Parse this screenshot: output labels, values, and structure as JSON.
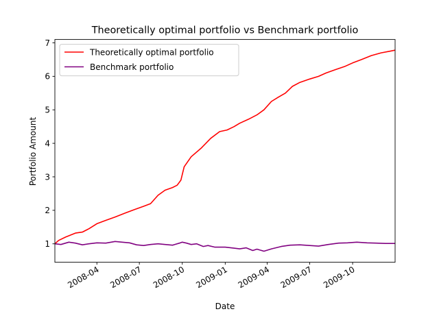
{
  "chart_data": {
    "type": "line",
    "title": "Theoretically optimal portfolio vs Benchmark portfolio",
    "xlabel": "Date",
    "ylabel": "Portfolio Amount",
    "xlim": [
      "2008-01-02",
      "2009-12-31"
    ],
    "ylim": [
      0.45,
      7.1
    ],
    "grid": false,
    "legend_position": "top-left",
    "x_ticks": [
      "2008-04-01",
      "2008-07-01",
      "2008-10-01",
      "2009-01-01",
      "2009-04-01",
      "2009-07-01",
      "2009-10-01"
    ],
    "x_tick_labels": [
      "2008-04",
      "2008-07",
      "2008-10",
      "2009-01",
      "2009-04",
      "2009-07",
      "2009-10"
    ],
    "y_ticks": [
      1,
      2,
      3,
      4,
      5,
      6,
      7
    ],
    "y_tick_labels": [
      "1",
      "2",
      "3",
      "4",
      "5",
      "6",
      "7"
    ],
    "series": [
      {
        "name": "Theoretically optimal portfolio",
        "color": "#ff0000",
        "x": [
          "2008-01-02",
          "2008-01-10",
          "2008-01-25",
          "2008-02-15",
          "2008-03-01",
          "2008-03-15",
          "2008-04-01",
          "2008-04-20",
          "2008-05-10",
          "2008-06-01",
          "2008-06-20",
          "2008-07-10",
          "2008-07-25",
          "2008-08-10",
          "2008-08-25",
          "2008-09-10",
          "2008-09-20",
          "2008-09-28",
          "2008-10-05",
          "2008-10-20",
          "2008-11-10",
          "2008-12-01",
          "2008-12-20",
          "2009-01-05",
          "2009-01-20",
          "2009-02-01",
          "2009-02-20",
          "2009-03-10",
          "2009-03-25",
          "2009-04-10",
          "2009-04-25",
          "2009-05-10",
          "2009-05-25",
          "2009-06-10",
          "2009-07-01",
          "2009-07-20",
          "2009-08-05",
          "2009-08-25",
          "2009-09-15",
          "2009-10-01",
          "2009-10-20",
          "2009-11-10",
          "2009-12-01",
          "2009-12-20",
          "2009-12-31"
        ],
        "y": [
          1.0,
          1.1,
          1.2,
          1.32,
          1.35,
          1.45,
          1.6,
          1.7,
          1.8,
          1.92,
          2.02,
          2.12,
          2.2,
          2.45,
          2.6,
          2.68,
          2.75,
          2.9,
          3.3,
          3.6,
          3.85,
          4.15,
          4.35,
          4.4,
          4.5,
          4.6,
          4.72,
          4.85,
          5.0,
          5.25,
          5.38,
          5.5,
          5.7,
          5.82,
          5.92,
          6.0,
          6.1,
          6.2,
          6.3,
          6.4,
          6.5,
          6.62,
          6.7,
          6.75,
          6.78
        ]
      },
      {
        "name": "Benchmark portfolio",
        "color": "#800080",
        "x": [
          "2008-01-02",
          "2008-01-15",
          "2008-02-01",
          "2008-02-15",
          "2008-03-01",
          "2008-03-15",
          "2008-04-01",
          "2008-04-20",
          "2008-05-10",
          "2008-05-25",
          "2008-06-10",
          "2008-06-25",
          "2008-07-10",
          "2008-07-25",
          "2008-08-10",
          "2008-08-25",
          "2008-09-10",
          "2008-09-25",
          "2008-10-01",
          "2008-10-10",
          "2008-10-20",
          "2008-11-01",
          "2008-11-15",
          "2008-11-25",
          "2008-12-10",
          "2009-01-01",
          "2009-01-20",
          "2009-02-01",
          "2009-02-15",
          "2009-03-01",
          "2009-03-10",
          "2009-03-25",
          "2009-04-10",
          "2009-05-01",
          "2009-05-20",
          "2009-06-10",
          "2009-07-01",
          "2009-07-20",
          "2009-08-10",
          "2009-09-01",
          "2009-09-20",
          "2009-10-10",
          "2009-11-01",
          "2009-11-20",
          "2009-12-10",
          "2009-12-31"
        ],
        "y": [
          1.0,
          0.98,
          1.05,
          1.02,
          0.97,
          1.0,
          1.03,
          1.02,
          1.07,
          1.05,
          1.03,
          0.97,
          0.95,
          0.98,
          1.0,
          0.98,
          0.96,
          1.02,
          1.05,
          1.02,
          0.98,
          1.0,
          0.92,
          0.95,
          0.9,
          0.9,
          0.87,
          0.85,
          0.88,
          0.8,
          0.84,
          0.78,
          0.85,
          0.92,
          0.96,
          0.97,
          0.95,
          0.93,
          0.98,
          1.02,
          1.03,
          1.05,
          1.03,
          1.02,
          1.01,
          1.01
        ]
      }
    ]
  }
}
